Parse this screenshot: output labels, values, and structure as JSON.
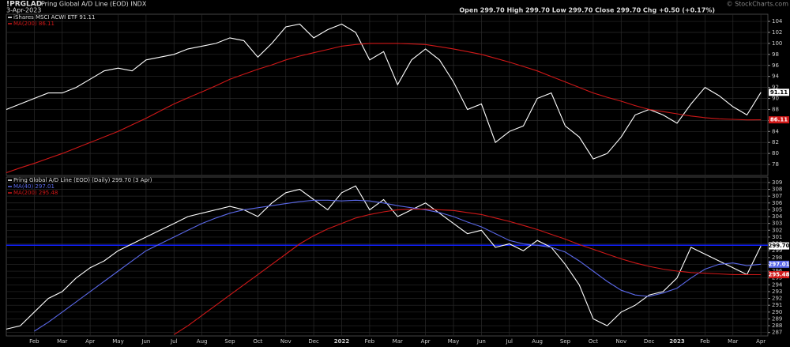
{
  "header": {
    "symbol": "!PRGLAD",
    "name": "Pring Global A/D Line (EOD) INDX",
    "date": "3-Apr-2023",
    "quote": "Open 299.70 High 299.70 Low 299.70 Close 299.70 Chg +0.50 (+0.17%)",
    "credit": "© StockCharts.com"
  },
  "chart_data": [
    {
      "type": "line",
      "ylim": [
        76,
        105.3
      ],
      "yticks": [
        78,
        80,
        82,
        84,
        86,
        88,
        90,
        92,
        94,
        96,
        98,
        100,
        102,
        104
      ],
      "grid": true,
      "series": [
        {
          "name": "iShares MSCI ACWI ETF 91.11",
          "color": "#ffffff",
          "last_label": "91.11",
          "values": [
            88,
            89,
            90,
            91,
            91,
            92,
            93.5,
            95,
            95.5,
            95,
            97,
            97.5,
            98,
            99,
            99.5,
            100,
            101,
            100.5,
            97.5,
            100,
            103,
            103.5,
            101,
            102.5,
            103.5,
            102,
            97,
            98.5,
            92.5,
            97,
            99,
            97,
            93,
            88,
            89,
            82,
            84,
            85,
            90,
            91,
            85,
            83,
            79,
            80,
            83,
            87,
            88,
            87,
            85.5,
            89,
            92,
            90.5,
            88.5,
            87,
            91.11
          ]
        },
        {
          "name": "MA(200) 86.11",
          "color": "#d01818",
          "last_label": "86.11",
          "values": [
            76.5,
            77.4,
            78.2,
            79.1,
            80,
            81,
            82,
            83,
            84,
            85.2,
            86.4,
            87.7,
            89,
            90.1,
            91.2,
            92.3,
            93.5,
            94.4,
            95.3,
            96.1,
            97,
            97.7,
            98.3,
            98.9,
            99.5,
            99.8,
            100,
            100,
            100,
            99.9,
            99.8,
            99.4,
            99,
            98.5,
            98,
            97.3,
            96.6,
            95.8,
            95,
            94,
            93,
            92,
            91,
            90.2,
            89.5,
            88.7,
            88,
            87.6,
            87.2,
            86.8,
            86.5,
            86.3,
            86.2,
            86.1,
            86.11
          ]
        }
      ]
    },
    {
      "type": "line",
      "ylim": [
        286.5,
        309.8
      ],
      "yticks": [
        287,
        288,
        289,
        290,
        291,
        292,
        293,
        294,
        295,
        296,
        297,
        298,
        299,
        300,
        301,
        302,
        303,
        304,
        305,
        306,
        307,
        308,
        309
      ],
      "grid": true,
      "xlim": [
        0,
        54.5
      ],
      "xticks": [
        {
          "value": 2,
          "label": "Feb"
        },
        {
          "value": 4,
          "label": "Mar"
        },
        {
          "value": 6,
          "label": "Apr"
        },
        {
          "value": 8,
          "label": "May"
        },
        {
          "value": 10,
          "label": "Jun"
        },
        {
          "value": 12,
          "label": "Jul"
        },
        {
          "value": 14,
          "label": "Aug"
        },
        {
          "value": 16,
          "label": "Sep"
        },
        {
          "value": 18,
          "label": "Oct"
        },
        {
          "value": 20,
          "label": "Nov"
        },
        {
          "value": 22,
          "label": "Dec"
        },
        {
          "value": 24,
          "label": "2022"
        },
        {
          "value": 26,
          "label": "Feb"
        },
        {
          "value": 28,
          "label": "Mar"
        },
        {
          "value": 30,
          "label": "Apr"
        },
        {
          "value": 32,
          "label": "May"
        },
        {
          "value": 34,
          "label": "Jun"
        },
        {
          "value": 36,
          "label": "Jul"
        },
        {
          "value": 38,
          "label": "Aug"
        },
        {
          "value": 40,
          "label": "Sep"
        },
        {
          "value": 42,
          "label": "Oct"
        },
        {
          "value": 44,
          "label": "Nov"
        },
        {
          "value": 46,
          "label": "Dec"
        },
        {
          "value": 48,
          "label": "2023"
        },
        {
          "value": 50,
          "label": "Feb"
        },
        {
          "value": 52,
          "label": "Mar"
        },
        {
          "value": 54,
          "label": "Apr"
        }
      ],
      "hline": {
        "value": 299.8,
        "color": "#1020ff"
      },
      "series": [
        {
          "name": "Pring Global A/D Line (EOD) (Daily) 299.70 (3 Apr)",
          "color": "#ffffff",
          "last_label": "299.70",
          "values": [
            287.5,
            288,
            290,
            292,
            293,
            295,
            296.5,
            297.5,
            299,
            300,
            301,
            302,
            303,
            304,
            304.5,
            305,
            305.5,
            305,
            304,
            306,
            307.5,
            308,
            306.5,
            305,
            307.5,
            308.5,
            305,
            306.5,
            304,
            305,
            306,
            304.5,
            303,
            301.5,
            302,
            299.5,
            300,
            299,
            300.5,
            299.5,
            297,
            294,
            289,
            288,
            290,
            291,
            292.5,
            293,
            295,
            299.5,
            298.5,
            297.5,
            296.5,
            295.5,
            299.7
          ]
        },
        {
          "name": "MA(40) 297.01",
          "color": "#5a68e8",
          "last_label": "297.01",
          "values": [
            null,
            null,
            287.2,
            288.5,
            290,
            291.5,
            293,
            294.5,
            296,
            297.5,
            299,
            300,
            301,
            302,
            303,
            303.8,
            304.5,
            305,
            305.3,
            305.6,
            305.9,
            306.2,
            306.4,
            306.4,
            306.3,
            306.4,
            306.3,
            306,
            305.6,
            305.3,
            305,
            304.6,
            304,
            303.2,
            302.5,
            301.5,
            300.5,
            300,
            299.8,
            299.5,
            298.8,
            297.5,
            296,
            294.5,
            293.2,
            292.5,
            292.3,
            292.8,
            293.5,
            295,
            296.3,
            297,
            297.2,
            296.8,
            297.01
          ]
        },
        {
          "name": "MA(200) 295.48",
          "color": "#d01818",
          "last_label": "295.48",
          "values": [
            null,
            null,
            null,
            null,
            null,
            null,
            null,
            null,
            null,
            null,
            null,
            null,
            286.7,
            288,
            289.5,
            291,
            292.5,
            294,
            295.5,
            297,
            298.5,
            300,
            301.2,
            302.2,
            303,
            303.8,
            304.3,
            304.7,
            305,
            305.1,
            305.1,
            305,
            304.9,
            304.6,
            304.3,
            303.8,
            303.3,
            302.7,
            302.1,
            301.4,
            300.7,
            299.9,
            299.2,
            298.5,
            297.8,
            297.2,
            296.7,
            296.3,
            296,
            295.8,
            295.7,
            295.6,
            295.5,
            295.5,
            295.48
          ]
        }
      ]
    }
  ]
}
